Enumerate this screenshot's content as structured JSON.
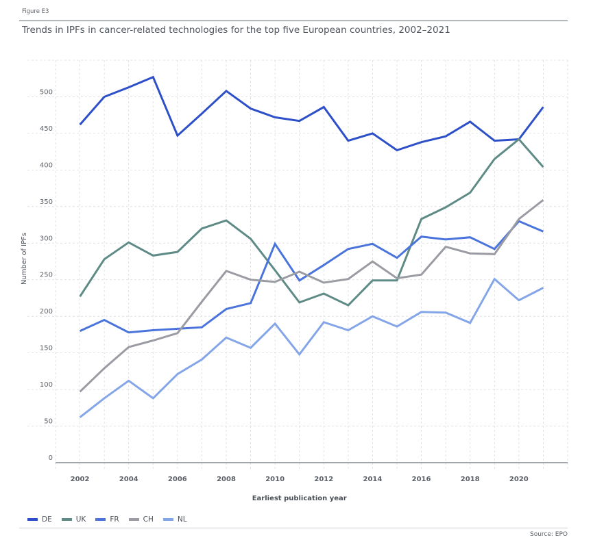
{
  "figure_label": "Figure E3",
  "source": "Source: EPO",
  "chart_data": {
    "type": "line",
    "title": "Trends in IPFs in cancer-related technologies for the top five European countries, 2002–2021",
    "xlabel": "Earliest publication year",
    "ylabel": "Number of IPFs",
    "x": [
      2002,
      2003,
      2004,
      2005,
      2006,
      2007,
      2008,
      2009,
      2010,
      2011,
      2012,
      2013,
      2014,
      2015,
      2016,
      2017,
      2018,
      2019,
      2020,
      2021
    ],
    "xlim": [
      2001,
      2022
    ],
    "xticks": [
      2002,
      2004,
      2006,
      2008,
      2010,
      2012,
      2014,
      2016,
      2018,
      2020
    ],
    "ylim": [
      0,
      550
    ],
    "yticks": [
      0,
      50,
      100,
      150,
      200,
      250,
      300,
      350,
      400,
      450,
      500
    ],
    "grid": true,
    "legend_position": "bottom-left",
    "series": [
      {
        "name": "DE",
        "color": "#2d4fc8",
        "values": [
          462,
          500,
          513,
          527,
          447,
          477,
          508,
          484,
          472,
          467,
          486,
          440,
          450,
          427,
          438,
          446,
          466,
          440,
          442,
          486
        ]
      },
      {
        "name": "UK",
        "color": "#5f8b86",
        "values": [
          227,
          278,
          301,
          283,
          288,
          320,
          331,
          306,
          263,
          219,
          231,
          215,
          249,
          249,
          333,
          349,
          369,
          415,
          442,
          404
        ]
      },
      {
        "name": "FR",
        "color": "#4a74dc",
        "values": [
          180,
          195,
          178,
          181,
          183,
          185,
          210,
          218,
          299,
          249,
          270,
          292,
          299,
          280,
          309,
          305,
          308,
          292,
          330,
          316
        ]
      },
      {
        "name": "CH",
        "color": "#9b9ca3",
        "values": [
          97,
          129,
          158,
          167,
          177,
          220,
          262,
          250,
          247,
          261,
          246,
          251,
          275,
          252,
          257,
          295,
          286,
          285,
          333,
          359
        ]
      },
      {
        "name": "NL",
        "color": "#84a5e8",
        "values": [
          62,
          88,
          112,
          88,
          121,
          141,
          171,
          157,
          190,
          148,
          192,
          181,
          200,
          186,
          206,
          205,
          191,
          251,
          222,
          239
        ]
      }
    ]
  }
}
